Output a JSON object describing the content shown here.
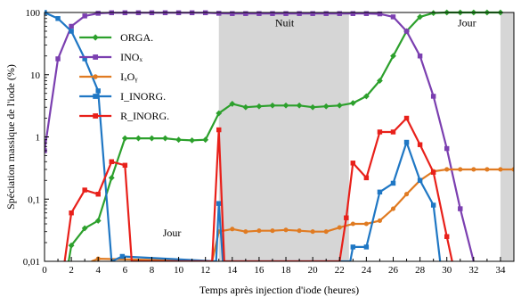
{
  "chart_data": {
    "type": "line",
    "xlabel": "Temps après injection d'iode (heures)",
    "ylabel": "Spéciation massique de l'iode (%)",
    "xlim": [
      0,
      35
    ],
    "ylim": [
      0.01,
      100
    ],
    "yscale": "log",
    "grid": false,
    "x_ticks": [
      0,
      2,
      4,
      6,
      8,
      10,
      12,
      14,
      16,
      18,
      20,
      22,
      24,
      26,
      28,
      30,
      32,
      34
    ],
    "y_ticks": [
      {
        "value": 0.01,
        "label": "0,01"
      },
      {
        "value": 0.1,
        "label": "0,1"
      },
      {
        "value": 1,
        "label": "1"
      },
      {
        "value": 10,
        "label": "10"
      },
      {
        "value": 100,
        "label": "100"
      }
    ],
    "night_band": {
      "label": "Nuit",
      "x_range": [
        13,
        22.7
      ]
    },
    "night_band_2": {
      "x_range": [
        34,
        35
      ]
    },
    "annotations": [
      {
        "text": "Jour",
        "x": 9.5,
        "y": 0.025
      },
      {
        "text": "Nuit",
        "x": 17.9,
        "y": 60
      },
      {
        "text": "Jour",
        "x": 31.5,
        "y": 60
      }
    ],
    "legend_position": "top-left",
    "series": [
      {
        "name": "ORGA.",
        "color": "#2ca02c",
        "marker": "diamond",
        "points": [
          [
            1.8,
            0.01
          ],
          [
            2,
            0.018
          ],
          [
            3,
            0.034
          ],
          [
            4,
            0.045
          ],
          [
            5,
            0.22
          ],
          [
            6,
            0.95
          ],
          [
            7,
            0.95
          ],
          [
            8,
            0.95
          ],
          [
            9,
            0.95
          ],
          [
            10,
            0.9
          ],
          [
            11,
            0.88
          ],
          [
            12,
            0.9
          ],
          [
            13,
            2.4
          ],
          [
            14,
            3.4
          ],
          [
            15,
            3.0
          ],
          [
            16,
            3.1
          ],
          [
            17,
            3.2
          ],
          [
            18,
            3.2
          ],
          [
            19,
            3.2
          ],
          [
            20,
            3.0
          ],
          [
            21,
            3.1
          ],
          [
            22,
            3.2
          ],
          [
            23,
            3.5
          ],
          [
            24,
            4.5
          ],
          [
            25,
            8.0
          ],
          [
            26,
            20
          ],
          [
            27,
            50
          ],
          [
            28,
            85
          ],
          [
            29,
            98
          ],
          [
            30,
            100
          ],
          [
            31,
            100
          ],
          [
            32,
            100
          ],
          [
            33,
            100
          ],
          [
            34,
            100
          ]
        ]
      },
      {
        "name": "INOₓ",
        "color": "#7b3fb0",
        "marker": "square",
        "points": [
          [
            0,
            0.6
          ],
          [
            1,
            18
          ],
          [
            2,
            60
          ],
          [
            3,
            88
          ],
          [
            4,
            97
          ],
          [
            5,
            99
          ],
          [
            6,
            99
          ],
          [
            7,
            99
          ],
          [
            8,
            99
          ],
          [
            9,
            99
          ],
          [
            10,
            99
          ],
          [
            11,
            99
          ],
          [
            12,
            99
          ],
          [
            13,
            97
          ],
          [
            14,
            96
          ],
          [
            15,
            96
          ],
          [
            16,
            96
          ],
          [
            17,
            96
          ],
          [
            18,
            96
          ],
          [
            19,
            96
          ],
          [
            20,
            96
          ],
          [
            21,
            96
          ],
          [
            22,
            96
          ],
          [
            23,
            96
          ],
          [
            24,
            96
          ],
          [
            25,
            95
          ],
          [
            26,
            85
          ],
          [
            27,
            50
          ],
          [
            28,
            20
          ],
          [
            29,
            4.5
          ],
          [
            30,
            0.65
          ],
          [
            31,
            0.07
          ],
          [
            32,
            0.01
          ]
        ]
      },
      {
        "name": "IₓOᵧ",
        "color": "#e07b22",
        "marker": "circle",
        "points": [
          [
            3.5,
            0.01
          ],
          [
            4,
            0.011
          ],
          [
            12.5,
            0.01
          ],
          [
            13,
            0.03
          ],
          [
            14,
            0.033
          ],
          [
            15,
            0.03
          ],
          [
            16,
            0.031
          ],
          [
            17,
            0.031
          ],
          [
            18,
            0.032
          ],
          [
            19,
            0.031
          ],
          [
            20,
            0.03
          ],
          [
            21,
            0.03
          ],
          [
            22,
            0.035
          ],
          [
            23,
            0.04
          ],
          [
            24,
            0.04
          ],
          [
            25,
            0.045
          ],
          [
            26,
            0.07
          ],
          [
            27,
            0.12
          ],
          [
            28,
            0.2
          ],
          [
            29,
            0.28
          ],
          [
            30,
            0.3
          ],
          [
            31,
            0.3
          ],
          [
            32,
            0.3
          ],
          [
            33,
            0.3
          ],
          [
            34,
            0.3
          ],
          [
            35,
            0.3
          ]
        ]
      },
      {
        "name": "I_INORG.",
        "color": "#1f77c4",
        "marker": "square",
        "points": [
          [
            0,
            100
          ],
          [
            1,
            80
          ],
          [
            2,
            50
          ],
          [
            3,
            18
          ],
          [
            4,
            5.5
          ],
          [
            5,
            0.01
          ],
          [
            5.8,
            0.012
          ],
          [
            12.8,
            0.01
          ],
          [
            13,
            0.085
          ],
          [
            13.3,
            0.01
          ],
          [
            22.8,
            0.01
          ],
          [
            23,
            0.017
          ],
          [
            24,
            0.017
          ],
          [
            25,
            0.13
          ],
          [
            26,
            0.18
          ],
          [
            27,
            0.82
          ],
          [
            28,
            0.2
          ],
          [
            29,
            0.08
          ],
          [
            29.5,
            0.01
          ]
        ]
      },
      {
        "name": "R_INORG.",
        "color": "#e8201a",
        "marker": "square",
        "points": [
          [
            1.5,
            0.01
          ],
          [
            2,
            0.06
          ],
          [
            3,
            0.14
          ],
          [
            4,
            0.12
          ],
          [
            5,
            0.4
          ],
          [
            6,
            0.35
          ],
          [
            6.5,
            0.01
          ],
          [
            12.5,
            0.01
          ],
          [
            13,
            1.3
          ],
          [
            13.4,
            0.01
          ],
          [
            22,
            0.01
          ],
          [
            22.5,
            0.05
          ],
          [
            23,
            0.38
          ],
          [
            24,
            0.22
          ],
          [
            25,
            1.2
          ],
          [
            26,
            1.2
          ],
          [
            27,
            2.0
          ],
          [
            28,
            0.75
          ],
          [
            29,
            0.27
          ],
          [
            30,
            0.025
          ],
          [
            30.4,
            0.01
          ]
        ]
      }
    ]
  }
}
